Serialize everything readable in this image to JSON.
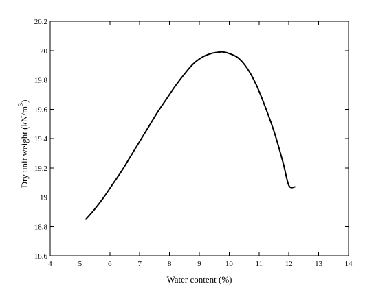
{
  "chart_data": {
    "type": "line",
    "title": "",
    "xlabel": "Water content (%)",
    "ylabel": "Dry unit weight (kN/m",
    "ylabel_superscript": "3",
    "ylabel_close": ")",
    "xlim": [
      4,
      14
    ],
    "ylim": [
      18.6,
      20.2
    ],
    "xticks": [
      "4",
      "5",
      "6",
      "7",
      "8",
      "9",
      "10",
      "11",
      "12",
      "13",
      "14"
    ],
    "yticks": [
      "18.6",
      "18.8",
      "19",
      "19.2",
      "19.4",
      "19.6",
      "19.8",
      "20",
      "20.2"
    ],
    "grid": false,
    "line_color": "#000000",
    "series": [
      {
        "x": [
          5.2,
          5.5,
          5.8,
          6.1,
          6.4,
          6.7,
          7.0,
          7.3,
          7.6,
          7.9,
          8.2,
          8.5,
          8.8,
          9.1,
          9.4,
          9.7,
          9.8,
          10.0,
          10.3,
          10.6,
          10.9,
          11.2,
          11.5,
          11.8,
          12.0,
          12.2
        ],
        "y": [
          18.85,
          18.92,
          19.0,
          19.09,
          19.18,
          19.28,
          19.38,
          19.48,
          19.58,
          19.67,
          19.76,
          19.84,
          19.91,
          19.955,
          19.98,
          19.99,
          19.99,
          19.98,
          19.95,
          19.88,
          19.77,
          19.62,
          19.45,
          19.24,
          19.08,
          19.07
        ]
      }
    ]
  }
}
